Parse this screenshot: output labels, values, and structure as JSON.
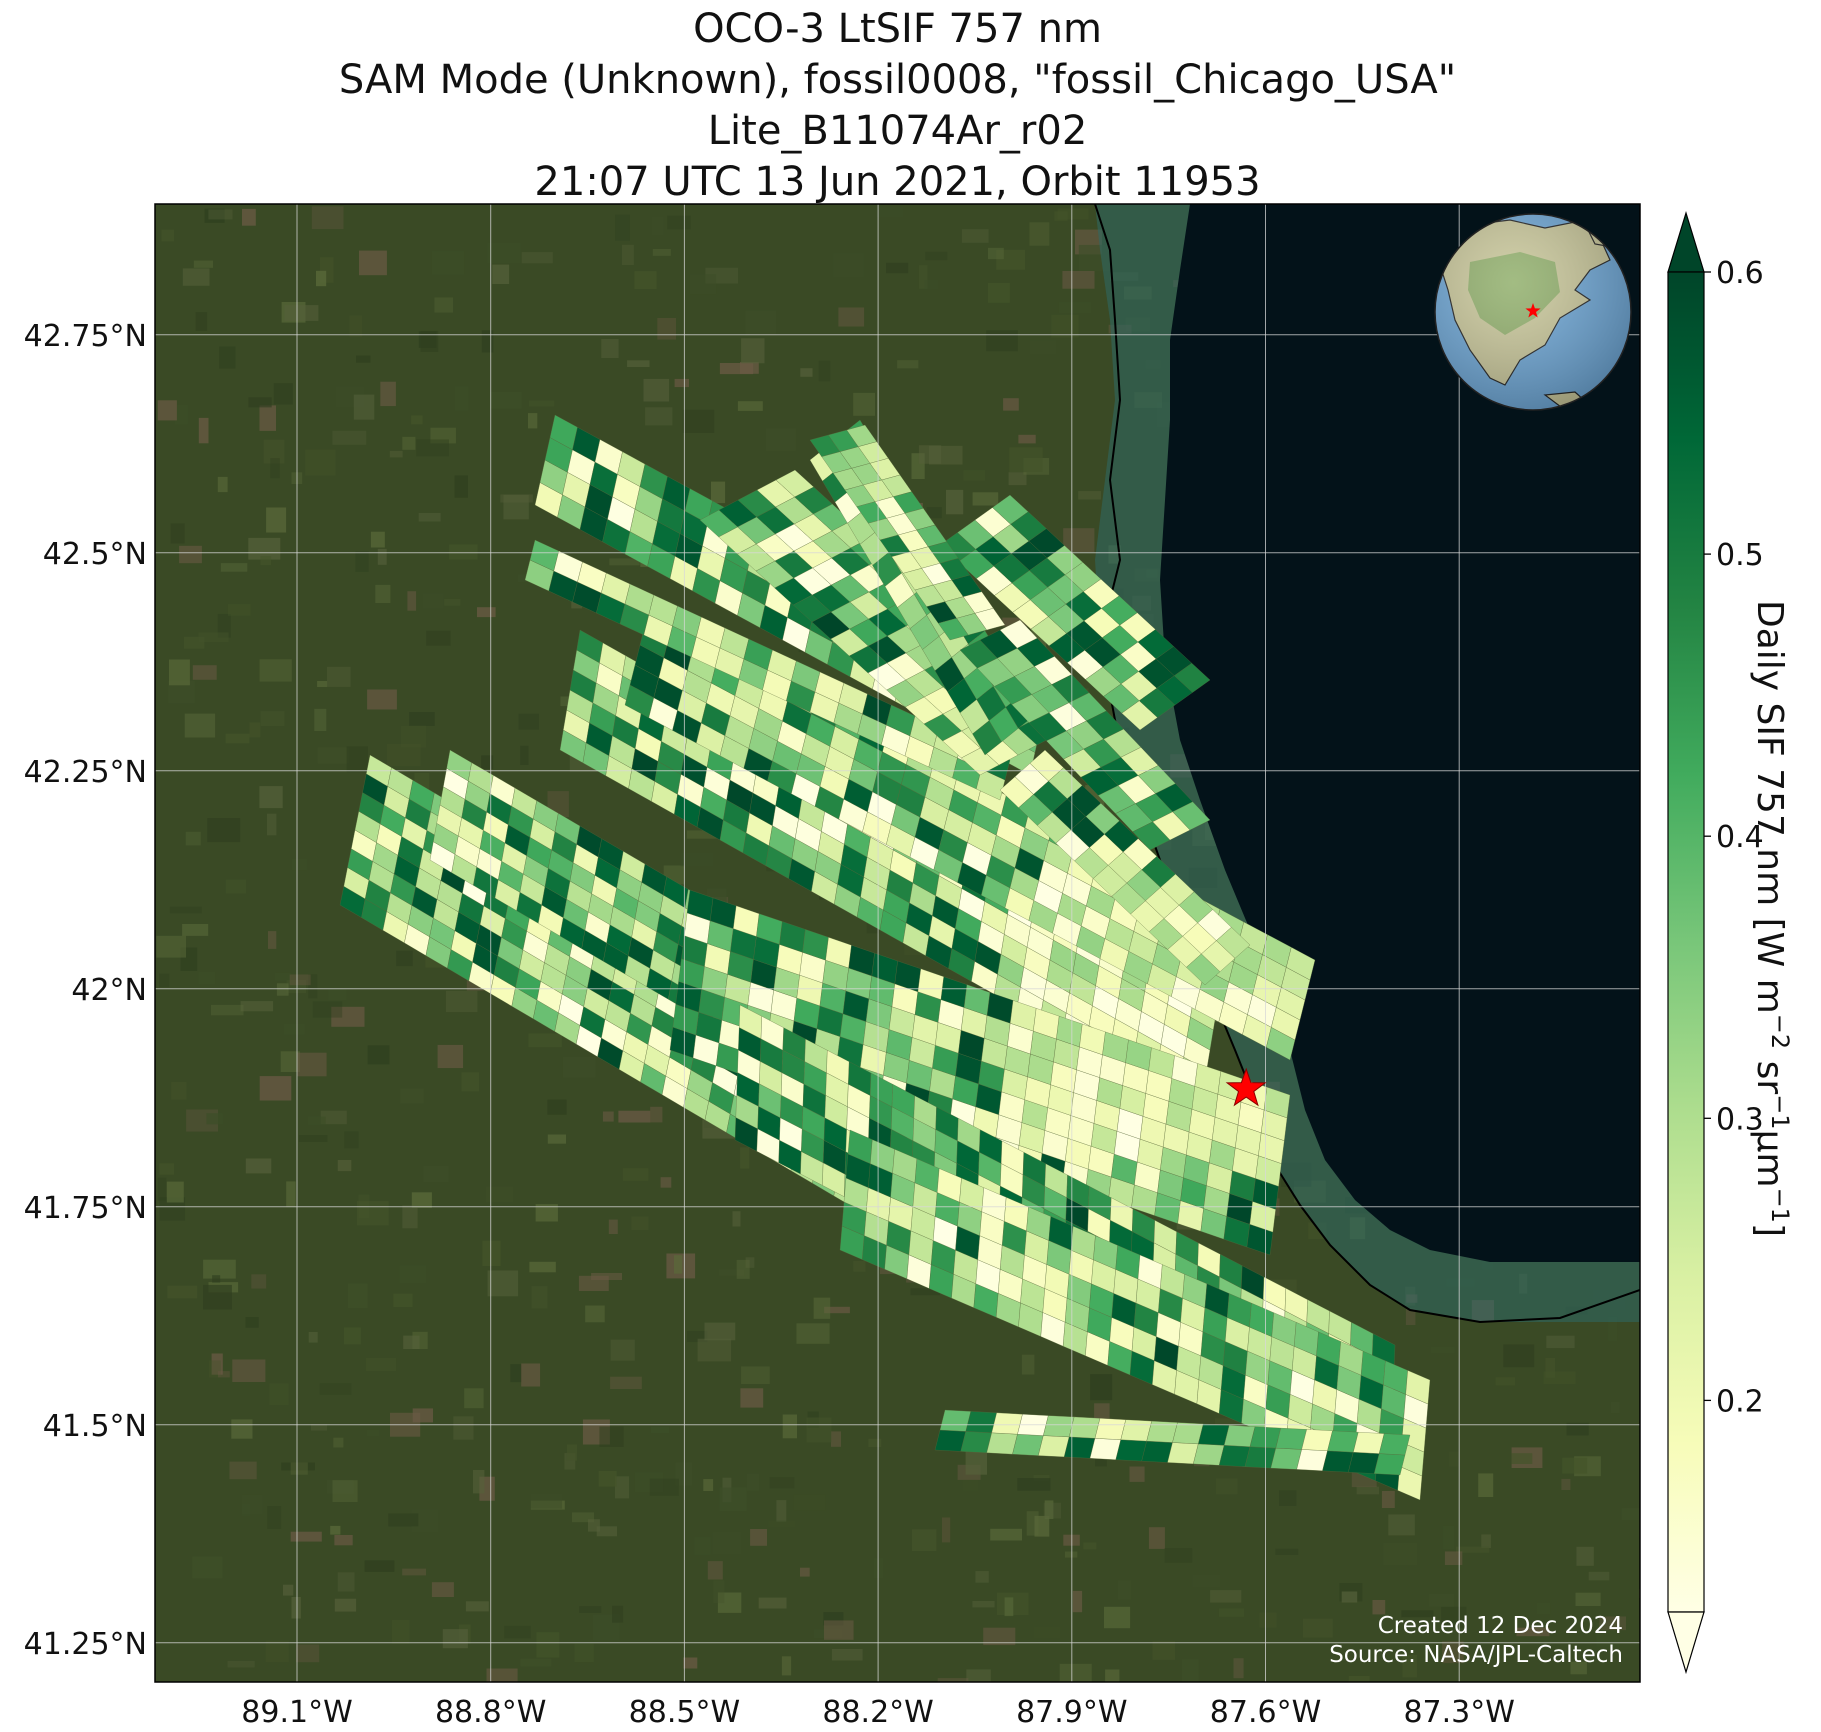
{
  "title_lines": [
    "OCO-3 LtSIF 757 nm",
    "SAM Mode (Unknown), fossil0008, \"fossil_Chicago_USA\"",
    "Lite_B11074Ar_r02",
    "21:07 UTC 13 Jun 2021, Orbit 11953"
  ],
  "map": {
    "extent": {
      "lon_min": -89.32,
      "lon_max": -87.02,
      "lat_min": 41.205,
      "lat_max": 42.9
    },
    "lat_ticks": [
      {
        "value": 42.75,
        "label": "42.75°N"
      },
      {
        "value": 42.5,
        "label": "42.5°N"
      },
      {
        "value": 42.25,
        "label": "42.25°N"
      },
      {
        "value": 42.0,
        "label": "42°N"
      },
      {
        "value": 41.75,
        "label": "41.75°N"
      },
      {
        "value": 41.5,
        "label": "41.5°N"
      },
      {
        "value": 41.25,
        "label": "41.25°N"
      }
    ],
    "lon_ticks": [
      {
        "value": -89.1,
        "label": "89.1°W"
      },
      {
        "value": -88.8,
        "label": "88.8°W"
      },
      {
        "value": -88.5,
        "label": "88.5°W"
      },
      {
        "value": -88.2,
        "label": "88.2°W"
      },
      {
        "value": -87.9,
        "label": "87.9°W"
      },
      {
        "value": -87.6,
        "label": "87.6°W"
      },
      {
        "value": -87.3,
        "label": "87.3°W"
      }
    ],
    "grid": true,
    "target_marker": {
      "lon": -87.63,
      "lat": 41.885,
      "color": "#ff0000"
    },
    "colors": {
      "land": "#3a4a25",
      "lake": "#031219",
      "lake_shore_sediment": "#2e6a66",
      "grid": "#d8d8d8"
    },
    "credit_lines": [
      "Created 12 Dec 2024",
      "Source: NASA/JPL-Caltech"
    ]
  },
  "inset_globe": {
    "marker_color": "#ff0000",
    "ocean_color": "#6ea7d6",
    "land_color": "#c9c79a"
  },
  "colorbar": {
    "label": "Daily SIF 757 nm [W m",
    "label_parts": [
      "Daily SIF 757 nm [W m",
      "−2",
      " sr",
      "−1",
      "μm",
      "−1",
      "]"
    ],
    "vmin": 0.125,
    "vmax": 0.6,
    "extend": "both",
    "cmap": "YlGn",
    "ticks": [
      {
        "value": 0.6,
        "label": "0.6"
      },
      {
        "value": 0.5,
        "label": "0.5"
      },
      {
        "value": 0.4,
        "label": "0.4"
      },
      {
        "value": 0.3,
        "label": "0.3"
      },
      {
        "value": 0.2,
        "label": "0.2"
      }
    ]
  }
}
